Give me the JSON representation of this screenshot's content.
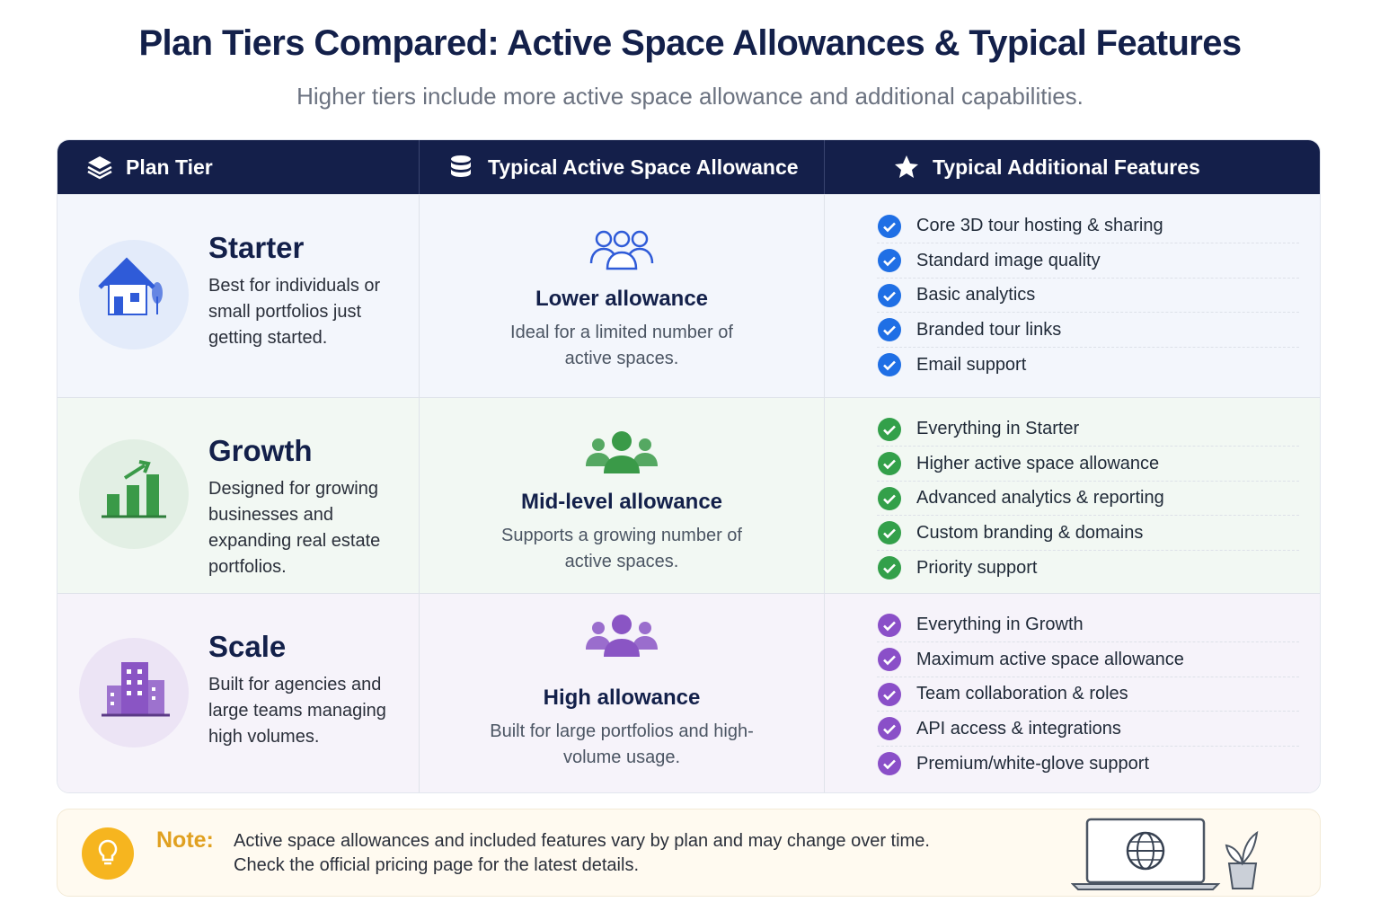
{
  "header": {
    "title": "Plan Tiers Compared: Active Space Allowances & Typical Features",
    "subtitle": "Higher tiers include more active space allowance and additional capabilities."
  },
  "table": {
    "columns": [
      "Plan Tier",
      "Typical Active Space Allowance",
      "Typical Additional Features"
    ],
    "rows": [
      {
        "tier": "Starter",
        "description": "Best for individuals or small portfolios just getting started.",
        "allowance": "Lower allowance",
        "allowance_description": "Ideal for a limited number of active spaces.",
        "features": [
          "Core 3D tour hosting & sharing",
          "Standard image quality",
          "Basic analytics",
          "Branded tour links",
          "Email support"
        ]
      },
      {
        "tier": "Growth",
        "description": "Designed for growing businesses and expanding real estate portfolios.",
        "allowance": "Mid-level allowance",
        "allowance_description": "Supports a growing number of active spaces.",
        "features": [
          "Everything in Starter",
          "Higher active space allowance",
          "Advanced analytics & reporting",
          "Custom branding & domains",
          "Priority support"
        ]
      },
      {
        "tier": "Scale",
        "description": "Built for agencies and large teams managing high volumes.",
        "allowance": "High allowance",
        "allowance_description": "Built for large portfolios and high-volume usage.",
        "features": [
          "Everything in Growth",
          "Maximum active space allowance",
          "Team collaboration & roles",
          "API access & integrations",
          "Premium/white-glove support"
        ]
      }
    ]
  },
  "note": {
    "label": "Note:",
    "lines": [
      "Active space allowances and included features vary by plan and may change over time.",
      "Check the official pricing page for the latest details."
    ]
  }
}
